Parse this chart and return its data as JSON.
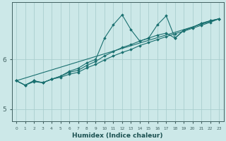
{
  "xlabel": "Humidex (Indice chaleur)",
  "bg_color": "#cce8e8",
  "line_color": "#1a7070",
  "grid_color": "#aacece",
  "x_ticks": [
    0,
    1,
    2,
    3,
    4,
    5,
    6,
    7,
    8,
    9,
    10,
    11,
    12,
    13,
    14,
    15,
    16,
    17,
    18,
    19,
    20,
    21,
    22,
    23
  ],
  "y_ticks": [
    5,
    6
  ],
  "xlim": [
    -0.5,
    23.5
  ],
  "ylim": [
    4.75,
    7.15
  ],
  "line1_x": [
    0,
    23
  ],
  "line1_y": [
    5.57,
    6.82
  ],
  "line2_x": [
    0,
    1,
    2,
    3,
    4,
    5,
    6,
    7,
    8,
    9,
    10,
    11,
    12,
    13,
    14,
    15,
    16,
    17,
    18,
    19,
    20,
    21,
    22,
    23
  ],
  "line2_y": [
    5.57,
    5.48,
    5.57,
    5.53,
    5.6,
    5.64,
    5.7,
    5.74,
    5.83,
    5.9,
    5.99,
    6.07,
    6.14,
    6.2,
    6.28,
    6.34,
    6.4,
    6.46,
    6.52,
    6.57,
    6.63,
    6.69,
    6.75,
    6.82
  ],
  "line3_x": [
    0,
    1,
    2,
    3,
    4,
    5,
    6,
    7,
    8,
    9,
    10,
    11,
    12,
    13,
    14,
    15,
    16,
    17,
    18,
    19,
    20,
    21,
    22,
    23
  ],
  "line3_y": [
    5.57,
    5.48,
    5.57,
    5.53,
    5.6,
    5.66,
    5.74,
    5.78,
    5.88,
    5.96,
    6.07,
    6.16,
    6.24,
    6.3,
    6.37,
    6.43,
    6.49,
    6.53,
    6.43,
    6.59,
    6.65,
    6.73,
    6.78,
    6.82
  ],
  "line4_x": [
    0,
    1,
    2,
    3,
    4,
    5,
    6,
    7,
    8,
    9,
    10,
    11,
    12,
    13,
    14,
    15,
    16,
    17,
    18,
    19,
    20,
    21,
    22,
    23
  ],
  "line4_y": [
    5.57,
    5.48,
    5.55,
    5.53,
    5.6,
    5.66,
    5.76,
    5.82,
    5.93,
    6.0,
    6.43,
    6.7,
    6.9,
    6.6,
    6.37,
    6.43,
    6.7,
    6.88,
    6.43,
    6.59,
    6.65,
    6.73,
    6.78,
    6.82
  ]
}
